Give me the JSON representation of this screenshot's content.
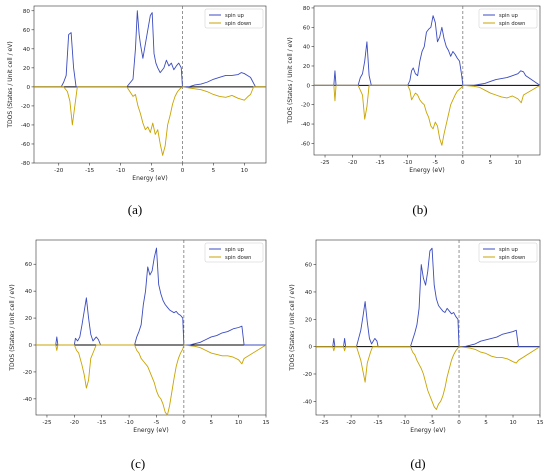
{
  "colors": {
    "spin_up": "#3b4cc0",
    "spin_up_light": "#2ab7d6",
    "spin_down": "#c9a400",
    "zero_line": "#000000",
    "fermi_line": "#666666",
    "frame": "#333333"
  },
  "chart_data": [
    {
      "panel": "(a)",
      "type": "line",
      "xlabel": "Energy (eV)",
      "ylabel": "TDOS (States / Unit cell / eV)",
      "xlim": [
        -24,
        13.5
      ],
      "ylim": [
        -80,
        85
      ],
      "xticks": [
        -20,
        -15,
        -10,
        -5,
        0,
        5,
        10
      ],
      "yticks": [
        -80,
        -60,
        -40,
        -20,
        0,
        20,
        40,
        60,
        80
      ],
      "fermi_level": 0,
      "legend": {
        "position": "top-right",
        "entries": [
          "spin up",
          "spin down"
        ]
      },
      "series": [
        {
          "name": "spin up",
          "x": [
            -24,
            -19.6,
            -19.2,
            -18.8,
            -18.4,
            -18,
            -17.6,
            -17.2,
            -9,
            -8,
            -7.6,
            -7.3,
            -7,
            -6.8,
            -6.4,
            -6,
            -5.6,
            -5.2,
            -4.9,
            -4.6,
            -4.3,
            -4,
            -3.6,
            -3,
            -2.6,
            -2.2,
            -1.8,
            -1.4,
            -1,
            -0.6,
            -0.2,
            0,
            1,
            2,
            3,
            4,
            5,
            6,
            7,
            8,
            9,
            9.5,
            10,
            10.5,
            11,
            11.4,
            11.8,
            13.5
          ],
          "y": [
            0,
            0,
            5,
            12,
            55,
            57,
            20,
            0,
            0,
            8,
            40,
            80,
            55,
            45,
            30,
            45,
            60,
            75,
            78,
            35,
            25,
            20,
            15,
            20,
            28,
            22,
            25,
            18,
            22,
            25,
            20,
            0,
            0,
            2,
            3,
            5,
            8,
            10,
            12,
            12,
            13,
            15,
            14,
            12,
            10,
            5,
            0,
            0
          ]
        },
        {
          "name": "spin down",
          "x": [
            -24,
            -19.2,
            -18.6,
            -18.2,
            -17.8,
            -17.4,
            -17,
            -9,
            -8,
            -7.6,
            -7.2,
            -6.8,
            -6.4,
            -6,
            -5.6,
            -5.2,
            -4.8,
            -4.4,
            -4,
            -3.6,
            -3.2,
            -2.8,
            -2.4,
            -2,
            -1.6,
            -1.2,
            -0.8,
            -0.4,
            0,
            2,
            3,
            4,
            5,
            6,
            7,
            8,
            9,
            10,
            10.6,
            11,
            11.5,
            13.5
          ],
          "y": [
            0,
            0,
            -5,
            -15,
            -40,
            -20,
            0,
            0,
            -10,
            -8,
            -20,
            -28,
            -38,
            -45,
            -42,
            -48,
            -38,
            -50,
            -45,
            -60,
            -72,
            -62,
            -40,
            -30,
            -18,
            -10,
            -5,
            -2,
            0,
            -2,
            -3,
            -5,
            -8,
            -10,
            -11,
            -9,
            -12,
            -14,
            -10,
            -8,
            0,
            0
          ]
        }
      ]
    },
    {
      "panel": "(b)",
      "type": "line",
      "xlabel": "Energy (eV)",
      "ylabel": "TDOS (States / Unit cell / eV)",
      "xlim": [
        -27,
        14
      ],
      "ylim": [
        -72,
        82
      ],
      "xticks": [
        -25,
        -20,
        -15,
        -10,
        -5,
        0,
        5,
        10
      ],
      "yticks": [
        -60,
        -40,
        -20,
        0,
        20,
        40,
        60,
        80
      ],
      "fermi_level": 0,
      "legend": {
        "position": "top-right",
        "entries": [
          "spin up",
          "spin down"
        ]
      },
      "series": [
        {
          "name": "spin up",
          "x": [
            -27,
            -23.4,
            -23.2,
            -23,
            -19,
            -18.6,
            -18.2,
            -17.8,
            -17.4,
            -17,
            -16.6,
            -16.2,
            -10,
            -9.6,
            -9.3,
            -9,
            -8.6,
            -8.2,
            -7.8,
            -7.4,
            -7,
            -6.6,
            -6.2,
            -5.8,
            -5.4,
            -5,
            -4.6,
            -4.2,
            -3.8,
            -3.4,
            -3,
            -2.6,
            -2.2,
            -1.8,
            -1.4,
            -1,
            -0.6,
            -0.2,
            0,
            1,
            2,
            3,
            4,
            5,
            6,
            7,
            8,
            9,
            10,
            10.5,
            11,
            11.4,
            14
          ],
          "y": [
            0,
            0,
            15,
            0,
            0,
            8,
            12,
            25,
            45,
            10,
            0,
            0,
            0,
            5,
            15,
            18,
            12,
            10,
            25,
            35,
            40,
            55,
            58,
            60,
            72,
            65,
            45,
            50,
            60,
            48,
            40,
            36,
            30,
            35,
            32,
            28,
            25,
            10,
            0,
            0,
            0,
            1,
            2,
            4,
            6,
            7,
            8,
            10,
            12,
            15,
            14,
            10,
            0
          ]
        },
        {
          "name": "spin down",
          "x": [
            -27,
            -23.4,
            -23.2,
            -23,
            -19,
            -18.6,
            -18.2,
            -17.8,
            -17.4,
            -17,
            -10,
            -9.6,
            -9.3,
            -9,
            -8.6,
            -8.2,
            -7.8,
            -7.4,
            -7,
            -6.6,
            -6.2,
            -5.8,
            -5.4,
            -5,
            -4.6,
            -4.2,
            -3.8,
            -3.4,
            -3,
            -2.6,
            -2.2,
            -1.8,
            -1.4,
            -1,
            -0.6,
            -0.2,
            0,
            2,
            3,
            4,
            5,
            6,
            7,
            8,
            9,
            10,
            10.6,
            11,
            14
          ],
          "y": [
            0,
            0,
            -16,
            0,
            0,
            -5,
            -10,
            -35,
            -22,
            0,
            0,
            -5,
            -15,
            -12,
            -8,
            -10,
            -15,
            -18,
            -20,
            -28,
            -33,
            -42,
            -45,
            -38,
            -42,
            -55,
            -62,
            -50,
            -40,
            -30,
            -20,
            -15,
            -10,
            -6,
            -4,
            -2,
            0,
            -1,
            -2,
            -5,
            -8,
            -10,
            -12,
            -13,
            -11,
            -14,
            -18,
            -10,
            0
          ]
        }
      ]
    },
    {
      "panel": "(c)",
      "type": "line",
      "xlabel": "Energy (eV)",
      "ylabel": "TDOS (States / Unit cell / eV)",
      "xlim": [
        -27,
        15
      ],
      "ylim": [
        -52,
        78
      ],
      "xticks": [
        -25,
        -20,
        -15,
        -10,
        -5,
        0,
        5,
        10,
        15
      ],
      "yticks": [
        -40,
        -20,
        0,
        20,
        40,
        60
      ],
      "fermi_level": 0,
      "legend": {
        "position": "top-right",
        "entries": [
          "spin up",
          "spin down"
        ]
      },
      "series": [
        {
          "name": "spin up",
          "x": [
            -27,
            -23.4,
            -23.2,
            -23,
            -20,
            -19.8,
            -19.4,
            -19,
            -18.6,
            -18.2,
            -17.8,
            -17.4,
            -17,
            -16.6,
            -16,
            -15.6,
            -15.2,
            -9,
            -8.6,
            -8.2,
            -7.8,
            -7.4,
            -7,
            -6.6,
            -6.2,
            -5.8,
            -5.4,
            -5,
            -4.6,
            -4.2,
            -3.8,
            -3.4,
            -3,
            -2.6,
            -2.2,
            -1.8,
            -1.4,
            -1,
            -0.6,
            -0.2,
            0,
            1,
            2,
            3,
            4,
            5,
            6,
            7,
            8,
            9,
            10,
            10.6,
            11,
            15
          ],
          "y": [
            0,
            0,
            6,
            0,
            0,
            5,
            3,
            6,
            15,
            25,
            35,
            20,
            8,
            3,
            6,
            4,
            0,
            0,
            6,
            10,
            15,
            30,
            40,
            58,
            52,
            55,
            65,
            72,
            45,
            38,
            33,
            30,
            28,
            26,
            25,
            24,
            25,
            23,
            22,
            20,
            0,
            0,
            1,
            2,
            4,
            6,
            7,
            9,
            10,
            12,
            13,
            14,
            0,
            0
          ]
        },
        {
          "name": "spin down",
          "x": [
            -27,
            -23.4,
            -23.2,
            -23,
            -20,
            -19.6,
            -19.2,
            -18.6,
            -18.2,
            -17.8,
            -17.4,
            -17,
            -16.4,
            -16,
            -9,
            -8.6,
            -8.2,
            -7.8,
            -7.4,
            -7,
            -6.6,
            -6.2,
            -5.8,
            -5.4,
            -5,
            -4.6,
            -4.2,
            -3.8,
            -3.4,
            -3,
            -2.6,
            -2.2,
            -1.8,
            -1.4,
            -1,
            -0.6,
            -0.2,
            0,
            2,
            3,
            4,
            5,
            6,
            7,
            8,
            9,
            10,
            10.6,
            11,
            15
          ],
          "y": [
            0,
            0,
            -4,
            0,
            0,
            -4,
            -6,
            -15,
            -22,
            -32,
            -26,
            -10,
            -4,
            0,
            0,
            -4,
            -6,
            -10,
            -12,
            -14,
            -16,
            -20,
            -24,
            -28,
            -34,
            -38,
            -40,
            -44,
            -50,
            -52,
            -45,
            -35,
            -25,
            -16,
            -10,
            -6,
            -3,
            0,
            -1,
            -2,
            -4,
            -6,
            -7,
            -8,
            -8,
            -9,
            -11,
            -14,
            -10,
            0
          ]
        }
      ]
    },
    {
      "panel": "(d)",
      "type": "line",
      "xlabel": "Energy (eV)",
      "ylabel": "TDOS (States / Unit cell / eV)",
      "xlim": [
        -26.5,
        15
      ],
      "ylim": [
        -50,
        78
      ],
      "xticks": [
        -25,
        -20,
        -15,
        -10,
        -5,
        0,
        5,
        10,
        15
      ],
      "yticks": [
        -40,
        -20,
        0,
        20,
        40,
        60
      ],
      "fermi_level": 0,
      "legend": {
        "position": "top-right",
        "entries": [
          "spin up",
          "spin down"
        ]
      },
      "series": [
        {
          "name": "spin up",
          "x": [
            -26.5,
            -23.4,
            -23.2,
            -23,
            -21.4,
            -21.2,
            -21,
            -19,
            -18.6,
            -18.2,
            -17.8,
            -17.4,
            -17,
            -16.6,
            -16.2,
            -15.6,
            -15.2,
            -15,
            -9,
            -8.6,
            -8.2,
            -7.8,
            -7.4,
            -7,
            -6.6,
            -6.2,
            -5.8,
            -5.4,
            -5,
            -4.6,
            -4.2,
            -3.8,
            -3.4,
            -3,
            -2.6,
            -2.2,
            -1.8,
            -1.4,
            -1,
            -0.6,
            -0.2,
            0,
            1,
            2,
            3,
            4,
            5,
            6,
            7,
            8,
            9,
            10,
            10.6,
            11,
            15
          ],
          "y": [
            0,
            0,
            6,
            0,
            0,
            6,
            0,
            0,
            6,
            12,
            22,
            33,
            18,
            6,
            2,
            6,
            4,
            0,
            0,
            5,
            10,
            16,
            28,
            60,
            50,
            45,
            55,
            70,
            72,
            45,
            35,
            30,
            28,
            26,
            25,
            28,
            26,
            24,
            25,
            22,
            20,
            0,
            0,
            1,
            2,
            4,
            5,
            6,
            7,
            9,
            10,
            11,
            12,
            0,
            0
          ]
        },
        {
          "name": "spin down",
          "x": [
            -26.5,
            -23.4,
            -23.2,
            -23,
            -21.4,
            -21.2,
            -21,
            -19,
            -18.6,
            -18.2,
            -17.8,
            -17.4,
            -17,
            -16.4,
            -16,
            -9,
            -8.6,
            -8.2,
            -7.8,
            -7.4,
            -7,
            -6.6,
            -6.2,
            -5.8,
            -5.4,
            -5,
            -4.6,
            -4.2,
            -3.8,
            -3.4,
            -3,
            -2.6,
            -2.2,
            -1.8,
            -1.4,
            -1,
            -0.6,
            -0.2,
            0,
            2,
            3,
            4,
            5,
            6,
            7,
            8,
            9,
            10,
            10.6,
            11,
            15
          ],
          "y": [
            0,
            0,
            -3,
            0,
            0,
            -3,
            0,
            0,
            -5,
            -10,
            -18,
            -26,
            -12,
            -4,
            0,
            0,
            -4,
            -6,
            -10,
            -13,
            -16,
            -20,
            -26,
            -32,
            -36,
            -40,
            -44,
            -46,
            -42,
            -40,
            -36,
            -30,
            -22,
            -16,
            -10,
            -6,
            -3,
            -1,
            0,
            -1,
            -2,
            -4,
            -5,
            -7,
            -8,
            -8,
            -9,
            -11,
            -12,
            -10,
            0
          ]
        }
      ]
    }
  ]
}
